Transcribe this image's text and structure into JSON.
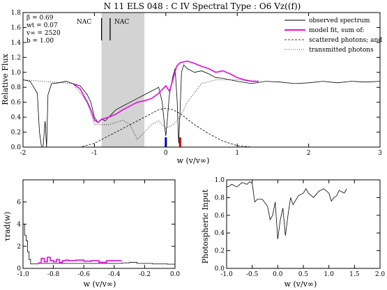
{
  "chart_data": [
    {
      "type": "line",
      "title": "N 11 ELS 048 : C IV     Spectral Type : O6 Vz((f))",
      "xlabel": "w (v/v∞)",
      "ylabel": "Relative Flux",
      "xlim": [
        -2,
        3
      ],
      "ylim": [
        0,
        1.8
      ],
      "xticks": [
        "-2",
        "-1",
        "0",
        "1",
        "2",
        "3"
      ],
      "yticks": [
        "0.0",
        "0.2",
        "0.4",
        "0.6",
        "0.8",
        "1.0",
        "1.2",
        "1.4",
        "1.6",
        "1.8"
      ],
      "grid": false,
      "legend_position": "top-right",
      "params": [
        "β  = 0.69",
        "wt = 0.07",
        "v∞ = 2520",
        "b  = 1.00"
      ],
      "nac_labels": [
        "NAC",
        "NAC"
      ],
      "nac_marks": [
        -0.9,
        -0.78
      ],
      "shaded_region": [
        -0.9,
        -0.3
      ],
      "ion_marks": [
        {
          "x": 0.0,
          "color": "#0000cc"
        },
        {
          "x": 0.2,
          "color": "#cc0000"
        }
      ],
      "series": [
        {
          "name": "observed spectrum",
          "color": "#000000",
          "style": "solid",
          "x": [
            -2.0,
            -1.9,
            -1.85,
            -1.8,
            -1.77,
            -1.74,
            -1.72,
            -1.69,
            -1.67,
            -1.65,
            -1.6,
            -1.5,
            -1.4,
            -1.3,
            -1.2,
            -1.1,
            -1.05,
            -1.0,
            -0.95,
            -0.9,
            -0.85,
            -0.8,
            -0.75,
            -0.7,
            -0.6,
            -0.5,
            -0.4,
            -0.3,
            -0.2,
            -0.1,
            -0.05,
            -0.02,
            0.0,
            0.02,
            0.05,
            0.1,
            0.13,
            0.16,
            0.18,
            0.2,
            0.22,
            0.25,
            0.3,
            0.4,
            0.5,
            0.6,
            0.7,
            0.8,
            0.9,
            1.0,
            1.2,
            1.4,
            1.6,
            1.8,
            2.0,
            2.2,
            2.4,
            2.6,
            2.8,
            3.0
          ],
          "y": [
            0.9,
            0.88,
            0.8,
            0.72,
            0.2,
            0.0,
            0.0,
            0.35,
            0.0,
            0.7,
            0.85,
            0.86,
            0.88,
            0.85,
            0.82,
            0.7,
            0.6,
            0.4,
            0.33,
            0.38,
            0.35,
            0.4,
            0.45,
            0.5,
            0.55,
            0.6,
            0.65,
            0.7,
            0.75,
            0.8,
            0.6,
            0.3,
            0.15,
            0.35,
            0.7,
            0.95,
            1.05,
            0.6,
            0.05,
            0.5,
            1.0,
            1.1,
            1.05,
            1.0,
            1.02,
            0.98,
            0.93,
            0.92,
            0.9,
            0.88,
            0.85,
            0.88,
            0.87,
            0.85,
            0.86,
            0.88,
            0.86,
            0.88,
            0.87,
            0.88
          ]
        },
        {
          "name": "model fit, sum of:",
          "color": "#e020e0",
          "style": "solid",
          "x": [
            -1.3,
            -1.2,
            -1.1,
            -1.05,
            -1.0,
            -0.95,
            -0.9,
            -0.8,
            -0.7,
            -0.6,
            -0.5,
            -0.4,
            -0.3,
            -0.2,
            -0.1,
            0.0,
            0.05,
            0.1,
            0.15,
            0.2,
            0.3,
            0.4,
            0.5,
            0.6,
            0.7,
            0.8,
            0.9,
            1.0,
            1.1,
            1.2,
            1.3
          ],
          "y": [
            0.85,
            0.78,
            0.6,
            0.5,
            0.36,
            0.33,
            0.37,
            0.4,
            0.44,
            0.5,
            0.55,
            0.6,
            0.62,
            0.65,
            0.72,
            0.82,
            0.75,
            0.9,
            1.08,
            1.13,
            1.15,
            1.12,
            1.08,
            1.05,
            1.0,
            1.02,
            0.98,
            0.93,
            0.9,
            0.88,
            0.88
          ]
        },
        {
          "name": "scattered photons; and",
          "color": "#000000",
          "style": "dashed",
          "x": [
            -2.0,
            -1.5,
            -1.2,
            -1.0,
            -0.8,
            -0.6,
            -0.4,
            -0.2,
            -0.1,
            0.0,
            0.1,
            0.2,
            0.4,
            0.6,
            0.8,
            1.0,
            1.2
          ],
          "y": [
            0.0,
            0.0,
            0.0,
            0.05,
            0.15,
            0.25,
            0.35,
            0.45,
            0.5,
            0.52,
            0.5,
            0.45,
            0.3,
            0.18,
            0.08,
            0.02,
            0.0
          ]
        },
        {
          "name": "transmitted photons",
          "color": "#000000",
          "style": "dotted",
          "x": [
            -2.0,
            -1.3,
            -1.1,
            -1.0,
            -0.9,
            -0.8,
            -0.6,
            -0.5,
            -0.4,
            -0.3,
            -0.2,
            -0.1,
            0.0,
            0.1,
            0.2,
            0.3,
            0.5,
            0.7,
            1.0,
            1.3
          ],
          "y": [
            0.9,
            0.85,
            0.6,
            0.3,
            0.3,
            0.3,
            0.36,
            0.3,
            0.1,
            0.2,
            0.3,
            0.35,
            0.25,
            0.3,
            0.4,
            0.6,
            0.85,
            0.9,
            0.9,
            0.88
          ]
        }
      ]
    },
    {
      "type": "line",
      "xlabel": "w (v/v∞)",
      "ylabel": "τrad(w)",
      "xlim": [
        -1.0,
        0.0
      ],
      "ylim": [
        0,
        8
      ],
      "xticks": [
        "-1.0",
        "-0.8",
        "-0.6",
        "-0.4",
        "-0.2",
        "0.0"
      ],
      "yticks": [
        "0",
        "2",
        "4",
        "6"
      ],
      "series": [
        {
          "color": "#000000",
          "style": "step",
          "x": [
            -1.0,
            -0.99,
            -0.98,
            -0.97,
            -0.96,
            -0.95,
            -0.9,
            -0.35,
            -0.3,
            -0.25,
            -0.2,
            -0.15,
            -0.1,
            -0.05,
            0.0
          ],
          "y": [
            4.0,
            3.0,
            2.5,
            1.5,
            0.8,
            0.4,
            0.45,
            0.5,
            0.55,
            0.45,
            0.45,
            0.4,
            0.4,
            0.38,
            0.38
          ]
        },
        {
          "color": "#e020e0",
          "style": "step",
          "x": [
            -0.9,
            -0.88,
            -0.86,
            -0.84,
            -0.82,
            -0.8,
            -0.78,
            -0.76,
            -0.74,
            -0.72,
            -0.7,
            -0.65,
            -0.6,
            -0.55,
            -0.5,
            -0.45,
            -0.4,
            -0.35
          ],
          "y": [
            0.5,
            0.9,
            0.6,
            1.0,
            0.7,
            0.6,
            0.8,
            0.55,
            0.7,
            0.75,
            0.7,
            0.75,
            0.65,
            0.7,
            0.55,
            0.7,
            0.7,
            0.7
          ]
        }
      ]
    },
    {
      "type": "line",
      "xlabel": "w (v/v∞)",
      "ylabel": "Photospheric Input",
      "xlim": [
        -1.0,
        2.0
      ],
      "ylim": [
        0,
        1.0
      ],
      "xticks": [
        "-1.0",
        "-0.5",
        "0.0",
        "0.5",
        "1.0",
        "1.5",
        "2.0"
      ],
      "yticks": [
        "0.0",
        "0.2",
        "0.4",
        "0.6",
        "0.8",
        "1.0"
      ],
      "series": [
        {
          "color": "#000000",
          "style": "solid",
          "x": [
            -1.0,
            -0.95,
            -0.9,
            -0.8,
            -0.7,
            -0.6,
            -0.55,
            -0.5,
            -0.45,
            -0.4,
            -0.3,
            -0.2,
            -0.15,
            -0.1,
            -0.05,
            0.0,
            0.05,
            0.1,
            0.15,
            0.2,
            0.25,
            0.3,
            0.4,
            0.5,
            0.55,
            0.6,
            0.7,
            0.8,
            0.9,
            1.0,
            1.05,
            1.1,
            1.15,
            1.2,
            1.3,
            1.35
          ],
          "y": [
            0.92,
            0.93,
            0.95,
            0.92,
            0.97,
            0.95,
            0.98,
            0.96,
            0.75,
            0.78,
            0.78,
            0.7,
            0.55,
            0.6,
            0.75,
            0.33,
            0.55,
            0.68,
            0.37,
            0.6,
            0.8,
            0.72,
            0.82,
            0.85,
            0.9,
            0.85,
            0.8,
            0.87,
            0.9,
            0.85,
            0.76,
            0.8,
            0.82,
            0.88,
            0.85,
            0.9
          ]
        }
      ]
    }
  ]
}
